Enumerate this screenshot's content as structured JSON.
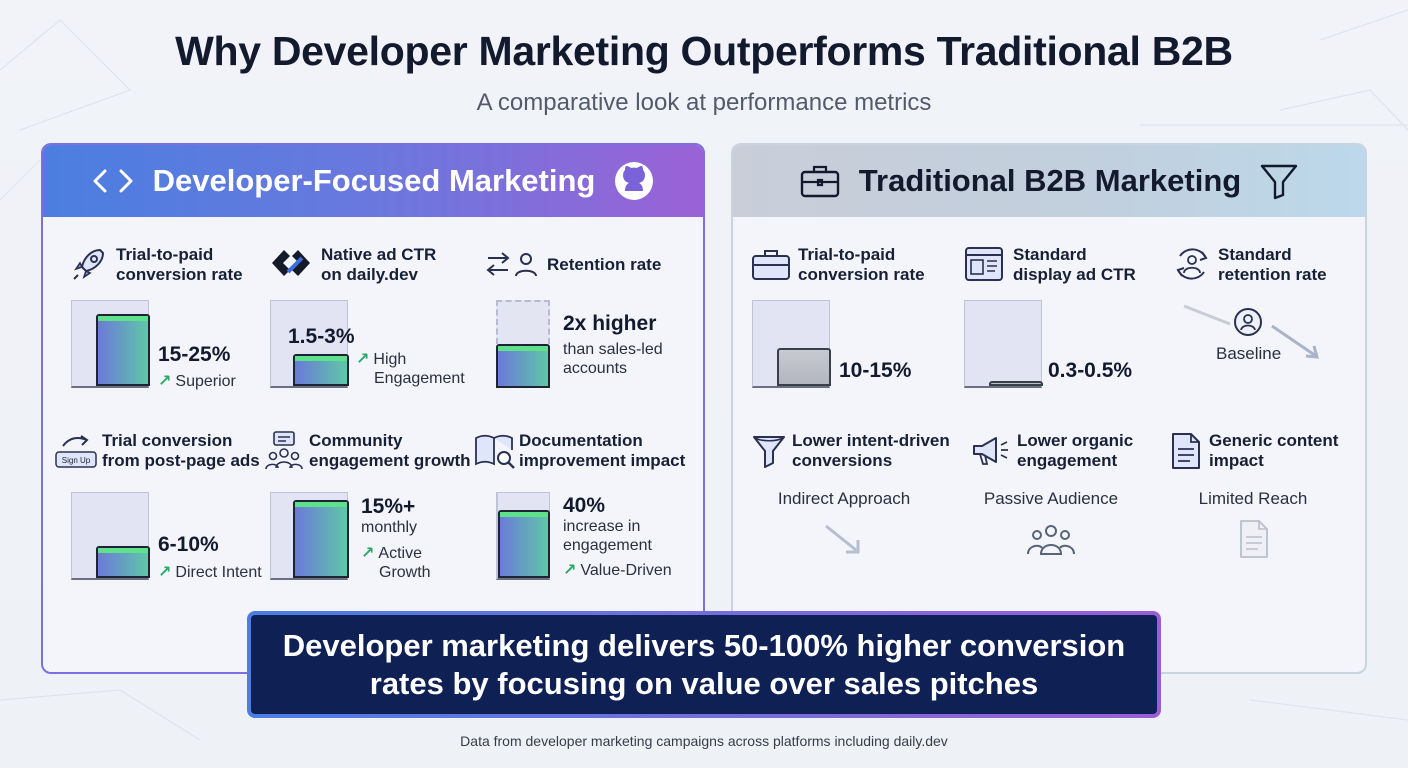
{
  "header": {
    "title": "Why Developer Marketing Outperforms Traditional B2B",
    "subtitle": "A comparative look at performance metrics"
  },
  "dev_panel": {
    "title": "Developer-Focused Marketing",
    "metrics": [
      {
        "label_lines": [
          "Trial-to-paid",
          "conversion rate"
        ],
        "value": "15-25%",
        "note_lines": [
          "Superior"
        ],
        "icon": "rocket-icon",
        "fill": 0.85
      },
      {
        "label_lines": [
          "Native ad CTR",
          "on daily.dev"
        ],
        "value": "1.5-3%",
        "note_lines": [
          "High",
          "Engagement"
        ],
        "icon": "daily-dev-logo-icon",
        "fill": 0.38
      },
      {
        "label_lines": [
          "Retention rate"
        ],
        "value": "2x higher",
        "note_lines": [
          "than sales-led",
          "accounts"
        ],
        "icon": "transfer-user-icon",
        "fill": 0.5
      },
      {
        "label_lines": [
          "Trial conversion",
          "from post-page ads"
        ],
        "value": "6-10%",
        "note_lines": [
          "Direct Intent"
        ],
        "icon": "sign-up-arrow-icon",
        "icon_text": "Sign Up",
        "fill": 0.38
      },
      {
        "label_lines": [
          "Community",
          "engagement growth"
        ],
        "value_lines": [
          "15%+",
          "monthly"
        ],
        "note_lines": [
          "Active",
          "Growth"
        ],
        "icon": "community-chat-icon",
        "fill": 0.92
      },
      {
        "label_lines": [
          "Documentation",
          "improvement impact"
        ],
        "value_lines": [
          "40%",
          "increase in",
          "engagement"
        ],
        "note_lines": [
          "Value-Driven"
        ],
        "icon": "book-search-icon",
        "fill": 0.8
      }
    ]
  },
  "trad_panel": {
    "title": "Traditional B2B Marketing",
    "metrics": [
      {
        "label_lines": [
          "Trial-to-paid",
          "conversion rate"
        ],
        "value": "10-15%",
        "icon": "briefcase-icon",
        "fill": 0.45
      },
      {
        "label_lines": [
          "Standard",
          "display ad CTR"
        ],
        "value": "0.3-0.5%",
        "icon": "browser-window-icon",
        "fill": 0.06
      },
      {
        "label_lines": [
          "Standard",
          "retention rate"
        ],
        "value": "Baseline",
        "icon": "refresh-user-icon"
      },
      {
        "label_lines": [
          "Lower intent-driven",
          "conversions"
        ],
        "caption": "Indirect Approach",
        "icon": "funnel-icon"
      },
      {
        "label_lines": [
          "Lower organic",
          "engagement"
        ],
        "caption": "Passive Audience",
        "icon": "megaphone-icon"
      },
      {
        "label_lines": [
          "Generic content",
          "impact"
        ],
        "caption": "Limited Reach",
        "icon": "document-icon"
      }
    ]
  },
  "banner": {
    "lines": [
      "Developer marketing delivers 50-100% higher conversion",
      "rates by focusing on value over sales pitches"
    ]
  },
  "footer": "Data from developer marketing campaigns across platforms including daily.dev",
  "colors": {
    "accent_blue": "#4b7ee0",
    "accent_purple": "#9a62d6",
    "positive_green": "#2ea86a",
    "banner_navy": "#0f2154"
  }
}
